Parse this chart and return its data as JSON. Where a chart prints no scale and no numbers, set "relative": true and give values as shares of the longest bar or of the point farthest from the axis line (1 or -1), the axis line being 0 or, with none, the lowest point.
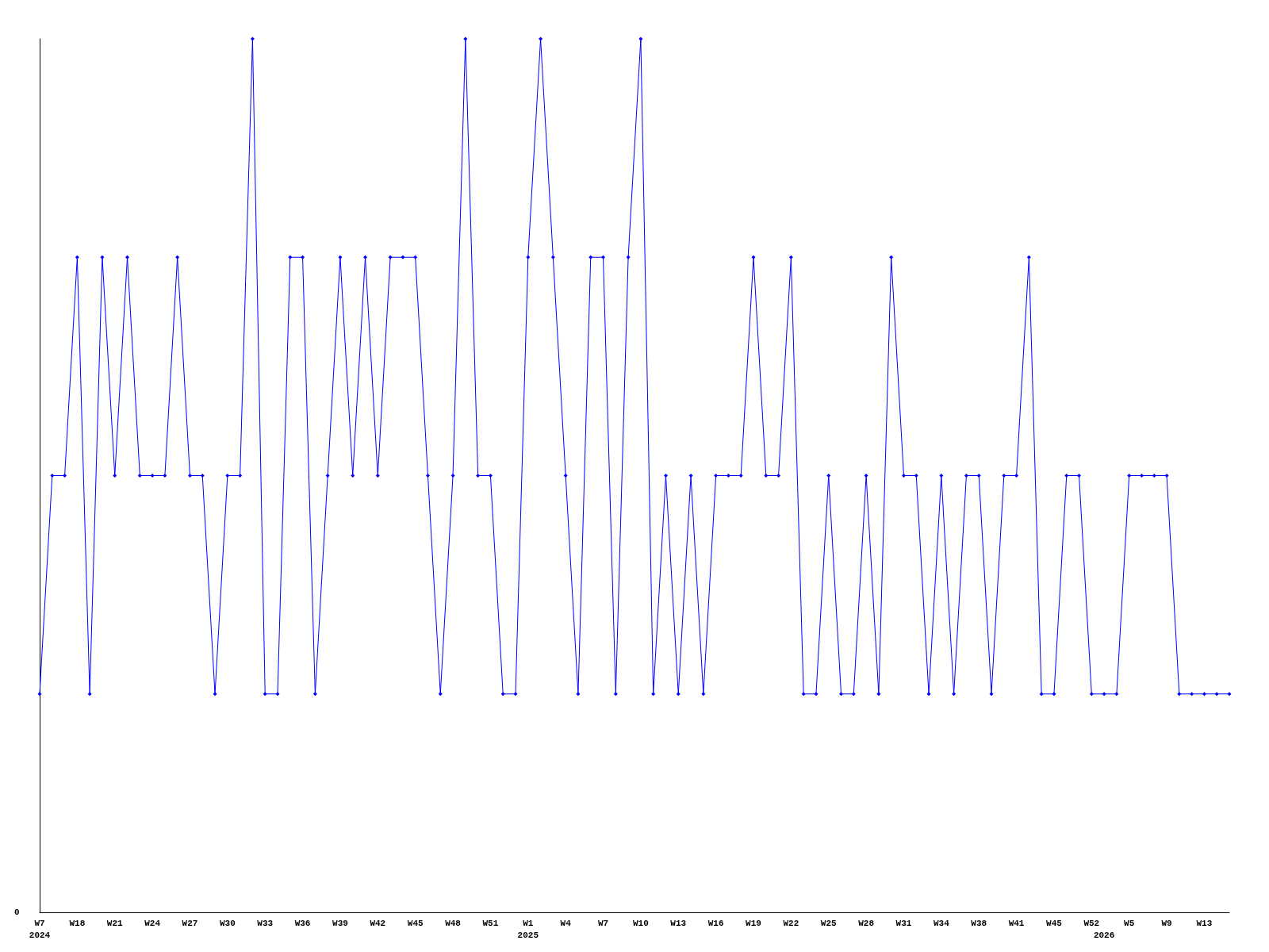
{
  "chart_data": {
    "type": "line",
    "relative": true,
    "annotations": [
      "0"
    ],
    "marker": "diamond",
    "line_style": "solid",
    "grid": false,
    "categories": [
      "W7\n2024",
      null,
      null,
      "W18",
      null,
      null,
      "W21",
      null,
      null,
      "W24",
      null,
      null,
      "W27",
      null,
      null,
      "W30",
      null,
      null,
      "W33",
      null,
      null,
      "W36",
      null,
      null,
      "W39",
      null,
      null,
      "W42",
      null,
      null,
      "W45",
      null,
      null,
      "W48",
      null,
      null,
      "W51",
      null,
      null,
      "W1\n2025",
      null,
      null,
      "W4",
      null,
      null,
      "W7",
      null,
      null,
      "W10",
      null,
      null,
      "W13",
      null,
      null,
      "W16",
      null,
      null,
      "W19",
      null,
      null,
      "W22",
      null,
      null,
      "W25",
      null,
      null,
      "W28",
      null,
      null,
      "W31",
      null,
      null,
      "W34",
      null,
      null,
      "W38",
      null,
      null,
      "W41",
      null,
      null,
      "W45",
      null,
      null,
      "W52",
      "\n2026",
      null,
      "W5",
      null,
      null,
      "W9",
      null,
      null,
      "W13",
      null,
      null
    ],
    "series": [
      {
        "color": "#0000ff",
        "values": [
          0.25,
          0.5,
          0.5,
          0.75,
          0.25,
          0.75,
          0.5,
          0.75,
          0.5,
          0.5,
          0.5,
          0.75,
          0.5,
          0.5,
          0.25,
          0.5,
          0.5,
          1,
          0.25,
          0.25,
          0.75,
          0.75,
          0.25,
          0.5,
          0.75,
          0.5,
          0.75,
          0.5,
          0.75,
          0.75,
          0.75,
          0.5,
          0.25,
          0.5,
          1,
          0.5,
          0.5,
          0.25,
          0.25,
          0.75,
          1,
          0.75,
          0.5,
          0.25,
          0.75,
          0.75,
          0.25,
          0.75,
          1,
          0.25,
          0.5,
          0.25,
          0.5,
          0.25,
          0.5,
          0.5,
          0.5,
          0.75,
          0.5,
          0.5,
          0.75,
          0.25,
          0.25,
          0.5,
          0.25,
          0.25,
          0.5,
          0.25,
          0.75,
          0.5,
          0.5,
          0.25,
          0.5,
          0.25,
          0.5,
          0.5,
          0.25,
          0.5,
          0.5,
          0.75,
          0.25,
          0.25,
          0.5,
          0.5,
          0.25,
          0.25,
          0.25,
          0.5,
          0.5,
          0.5,
          0.5,
          0.25,
          0.25,
          0.25,
          0.25,
          0.25
        ]
      }
    ]
  }
}
